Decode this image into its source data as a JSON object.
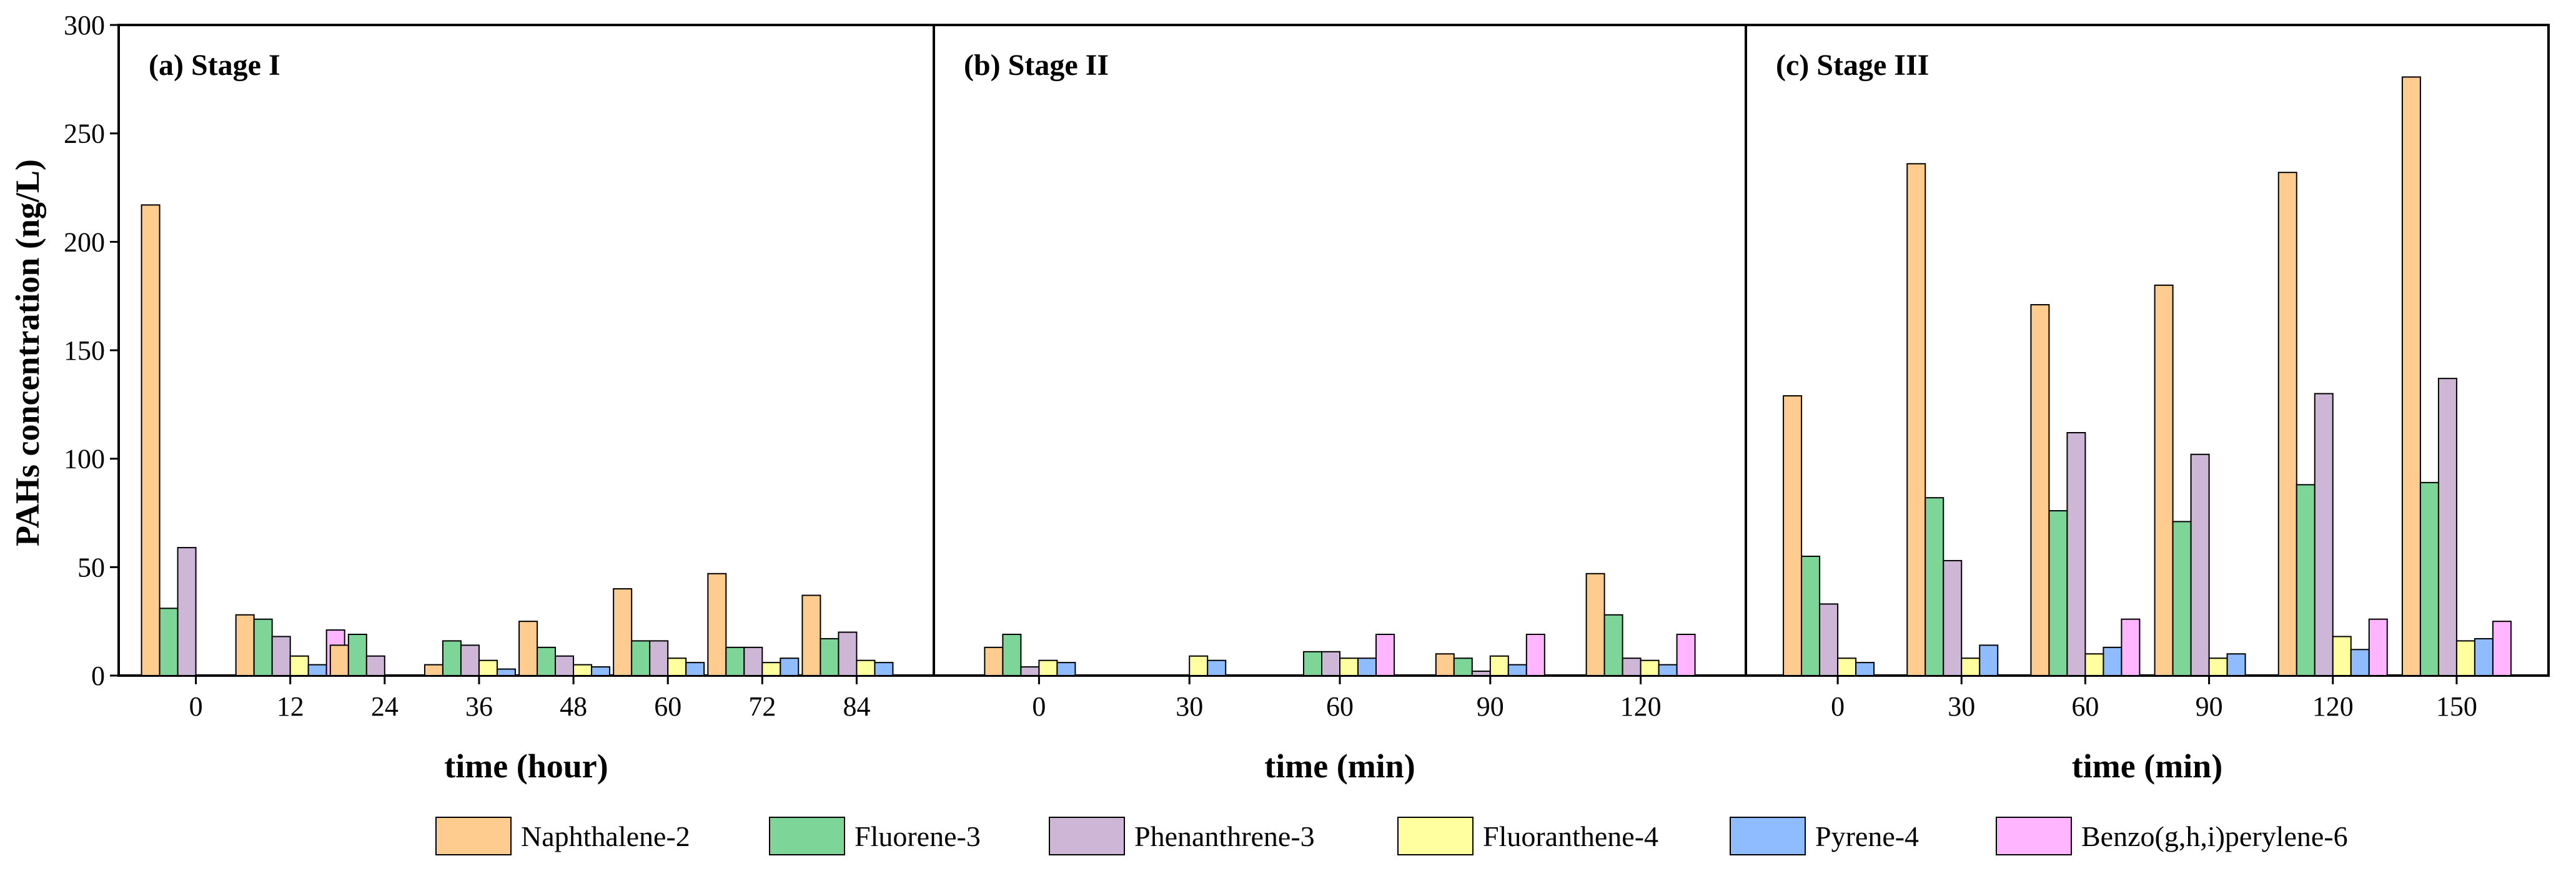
{
  "chart_data": {
    "type": "bar",
    "ylabel": "PAHs concentration (ng/L)",
    "ylim": [
      0,
      300
    ],
    "yticks": [
      "0",
      "50",
      "100",
      "150",
      "200",
      "250",
      "300"
    ],
    "series_names": [
      "Naphthalene-2",
      "Fluorene-3",
      "Phenanthrene-3",
      "Fluoranthene-4",
      "Pyrene-4",
      "Benzo(g,h,i)perylene-6"
    ],
    "colors": [
      "#FFCC8F",
      "#7DD698",
      "#CDB6D6",
      "#FFFF9F",
      "#8FBCFF",
      "#FFB5FF"
    ],
    "legend_position": "bottom",
    "panels": [
      {
        "title": "(a) Stage I",
        "xlabel": "time (hour)",
        "categories": [
          "0",
          "12",
          "24",
          "36",
          "48",
          "60",
          "72",
          "84"
        ],
        "values": [
          [
            217,
            31,
            59,
            0,
            0,
            0
          ],
          [
            28,
            26,
            18,
            9,
            5,
            21
          ],
          [
            14,
            19,
            9,
            0,
            0,
            0
          ],
          [
            5,
            16,
            14,
            7,
            3,
            0
          ],
          [
            25,
            13,
            9,
            5,
            4,
            0
          ],
          [
            40,
            16,
            16,
            8,
            6,
            0
          ],
          [
            47,
            13,
            13,
            6,
            8,
            0
          ],
          [
            37,
            17,
            20,
            7,
            6,
            0
          ]
        ]
      },
      {
        "title": "(b) Stage II",
        "xlabel": "time (min)",
        "categories": [
          "0",
          "30",
          "60",
          "90",
          "120"
        ],
        "values": [
          [
            13,
            19,
            4,
            7,
            6,
            0
          ],
          [
            0,
            0,
            0,
            9,
            7,
            0
          ],
          [
            0,
            11,
            11,
            8,
            8,
            19
          ],
          [
            10,
            8,
            2,
            9,
            5,
            19
          ],
          [
            47,
            28,
            8,
            7,
            5,
            19
          ]
        ]
      },
      {
        "title": "(c) Stage III",
        "xlabel": "time (min)",
        "categories": [
          "0",
          "30",
          "60",
          "90",
          "120",
          "150"
        ],
        "values": [
          [
            129,
            55,
            33,
            8,
            6,
            0
          ],
          [
            236,
            82,
            53,
            8,
            14,
            0
          ],
          [
            171,
            76,
            112,
            10,
            13,
            26
          ],
          [
            180,
            71,
            102,
            8,
            10,
            0
          ],
          [
            232,
            88,
            130,
            18,
            12,
            26
          ],
          [
            276,
            89,
            137,
            16,
            17,
            25
          ]
        ]
      }
    ]
  }
}
